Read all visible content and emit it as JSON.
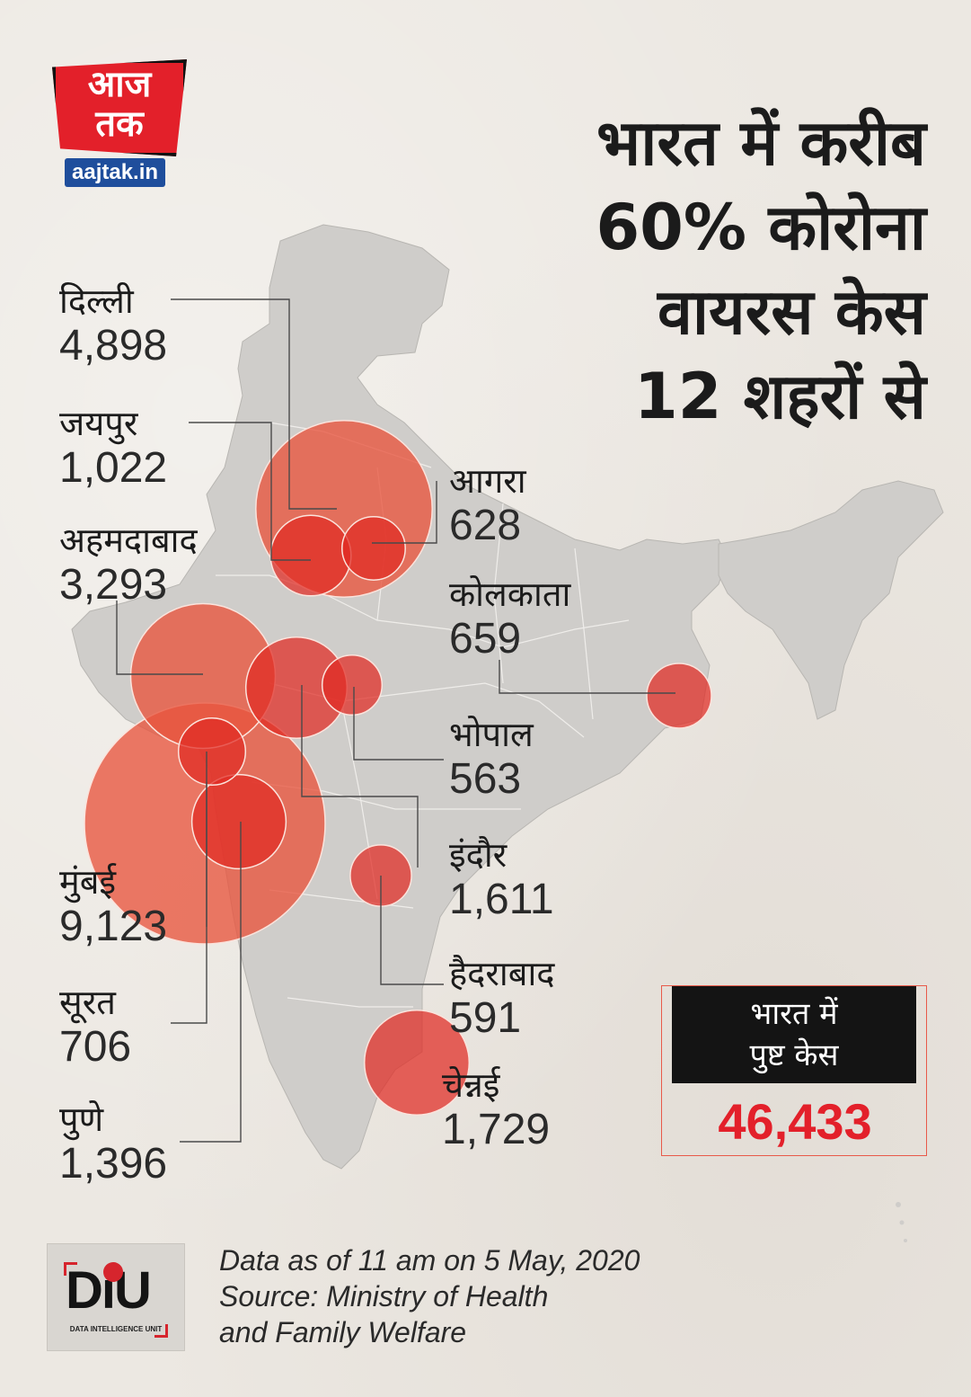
{
  "logo": {
    "text_line1": "आज",
    "text_line2": "तक",
    "site": "aajtak.in"
  },
  "headline": {
    "lines": [
      "भारत में करीब",
      "60% कोरोना",
      "वायरस केस",
      "12 शहरों से"
    ]
  },
  "cities": [
    {
      "id": "delhi",
      "name": "दिल्ली",
      "value": "4,898",
      "cases": 4898
    },
    {
      "id": "jaipur",
      "name": "जयपुर",
      "value": "1,022",
      "cases": 1022
    },
    {
      "id": "ahmedabad",
      "name": "अहमदाबाद",
      "value": "3,293",
      "cases": 3293
    },
    {
      "id": "mumbai",
      "name": "मुंबई",
      "value": "9,123",
      "cases": 9123
    },
    {
      "id": "surat",
      "name": "सूरत",
      "value": "706",
      "cases": 706
    },
    {
      "id": "pune",
      "name": "पुणे",
      "value": "1,396",
      "cases": 1396
    },
    {
      "id": "agra",
      "name": "आगरा",
      "value": "628",
      "cases": 628
    },
    {
      "id": "kolkata",
      "name": "कोलकाता",
      "value": "659",
      "cases": 659
    },
    {
      "id": "bhopal",
      "name": "भोपाल",
      "value": "563",
      "cases": 563
    },
    {
      "id": "indore",
      "name": "इंदौर",
      "value": "1,611",
      "cases": 1611
    },
    {
      "id": "hyderabad",
      "name": "हैदराबाद",
      "value": "591",
      "cases": 591
    },
    {
      "id": "chennai",
      "name": "चेन्नई",
      "value": "1,729",
      "cases": 1729
    }
  ],
  "confirmed": {
    "label_line1": "भारत में",
    "label_line2": "पुष्ट केस",
    "value": "46,433"
  },
  "footer": {
    "diu_logo": "DiU",
    "diu_sub": "DATA INTELLIGENCE UNIT",
    "source_lines": [
      "Data as of 11 am on 5 May, 2020",
      "Source: Ministry of Health",
      "and Family Welfare"
    ]
  },
  "colors": {
    "bubble": "#e8553e",
    "bubble_dark": "#e02a22",
    "map": "#cfcdca",
    "accent": "#e3202a"
  }
}
